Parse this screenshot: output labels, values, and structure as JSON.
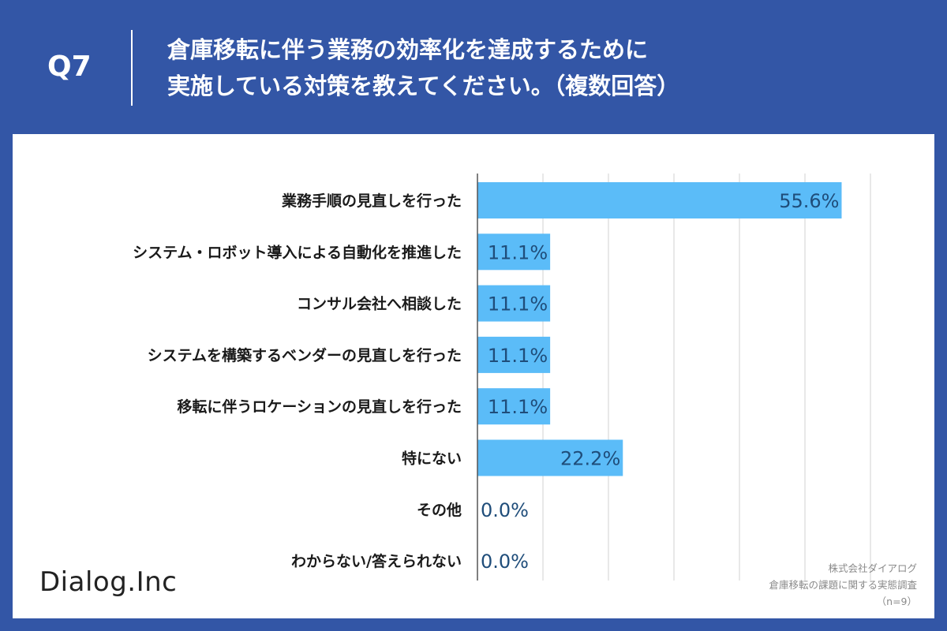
{
  "header": {
    "question_number": "Q7",
    "title_line1": "倉庫移転に伴う業務の効率化を達成するために",
    "title_line2": "実施している対策を教えてください。（複数回答）"
  },
  "footer": {
    "logo_text": "Dialog.Inc",
    "source_line1": "株式会社ダイアログ",
    "source_line2": "倉庫移転の課題に関する実態調査",
    "source_line3": "（n=9）"
  },
  "colors": {
    "frame": "#3356a6",
    "bar": "#5bbcf8",
    "value_text": "#1f4d7a",
    "label_text": "#1a1a1a",
    "grid": "#d0d0d0",
    "axis": "#555555"
  },
  "chart_data": {
    "type": "bar",
    "orientation": "horizontal",
    "categories": [
      "業務手順の見直しを行った",
      "システム・ロボット導入による自動化を推進した",
      "コンサル会社へ相談した",
      "システムを構築するベンダーの見直しを行った",
      "移転に伴うロケーションの見直しを行った",
      "特にない",
      "その他",
      "わからない/答えられない"
    ],
    "values": [
      55.6,
      11.1,
      11.1,
      11.1,
      11.1,
      22.2,
      0.0,
      0.0
    ],
    "value_labels": [
      "55.6%",
      "11.1%",
      "11.1%",
      "11.1%",
      "11.1%",
      "22.2%",
      "0.0%",
      "0.0%"
    ],
    "xlim": [
      0,
      60
    ],
    "grid": true,
    "legend": "none"
  }
}
